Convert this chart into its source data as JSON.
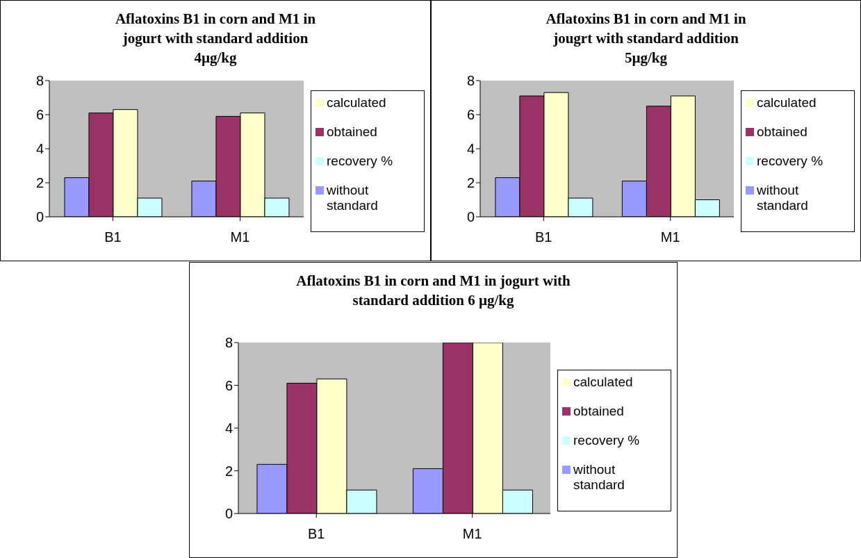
{
  "chart_data": [
    {
      "type": "bar",
      "title": "Aflatoxins B1 in corn and M1 in jogurt with standard addition 4µg/kg",
      "categories": [
        "B1",
        "M1"
      ],
      "series": [
        {
          "name": "without standard",
          "color": "#9999ff",
          "values": [
            2.3,
            2.1
          ]
        },
        {
          "name": "obtained",
          "color": "#993366",
          "values": [
            6.1,
            5.9
          ]
        },
        {
          "name": "calculated",
          "color": "#ffffcc",
          "values": [
            6.3,
            6.1
          ]
        },
        {
          "name": "recovery %",
          "color": "#ccffff",
          "values": [
            1.1,
            1.1
          ]
        }
      ],
      "ylim": [
        0,
        8
      ],
      "yticks": [
        0,
        2,
        4,
        6,
        8
      ],
      "grid": false,
      "legend": "right"
    },
    {
      "type": "bar",
      "title": "Aflatoxins B1 in corn and M1 in jougrt with standard addition  5µg/kg",
      "categories": [
        "B1",
        "M1"
      ],
      "series": [
        {
          "name": "without standard",
          "color": "#9999ff",
          "values": [
            2.3,
            2.1
          ]
        },
        {
          "name": "obtained",
          "color": "#993366",
          "values": [
            7.1,
            6.5
          ]
        },
        {
          "name": "calculated",
          "color": "#ffffcc",
          "values": [
            7.3,
            7.1
          ]
        },
        {
          "name": "recovery %",
          "color": "#ccffff",
          "values": [
            1.1,
            1.0
          ]
        }
      ],
      "ylim": [
        0,
        8
      ],
      "yticks": [
        0,
        2,
        4,
        6,
        8
      ],
      "grid": false,
      "legend": "right"
    },
    {
      "type": "bar",
      "title": "Aflatoxins B1 in corn and M1 in jogurt with standard addition 6 µg/kg",
      "categories": [
        "B1",
        "M1"
      ],
      "series": [
        {
          "name": "without standard",
          "color": "#9999ff",
          "values": [
            2.3,
            2.1
          ]
        },
        {
          "name": "obtained",
          "color": "#993366",
          "values": [
            6.1,
            8.0
          ]
        },
        {
          "name": "calculated",
          "color": "#ffffcc",
          "values": [
            6.3,
            8.0
          ]
        },
        {
          "name": "recovery %",
          "color": "#ccffff",
          "values": [
            1.1,
            1.1
          ]
        }
      ],
      "ylim": [
        0,
        8
      ],
      "yticks": [
        0,
        2,
        4,
        6,
        8
      ],
      "grid": false,
      "legend": "right"
    }
  ]
}
